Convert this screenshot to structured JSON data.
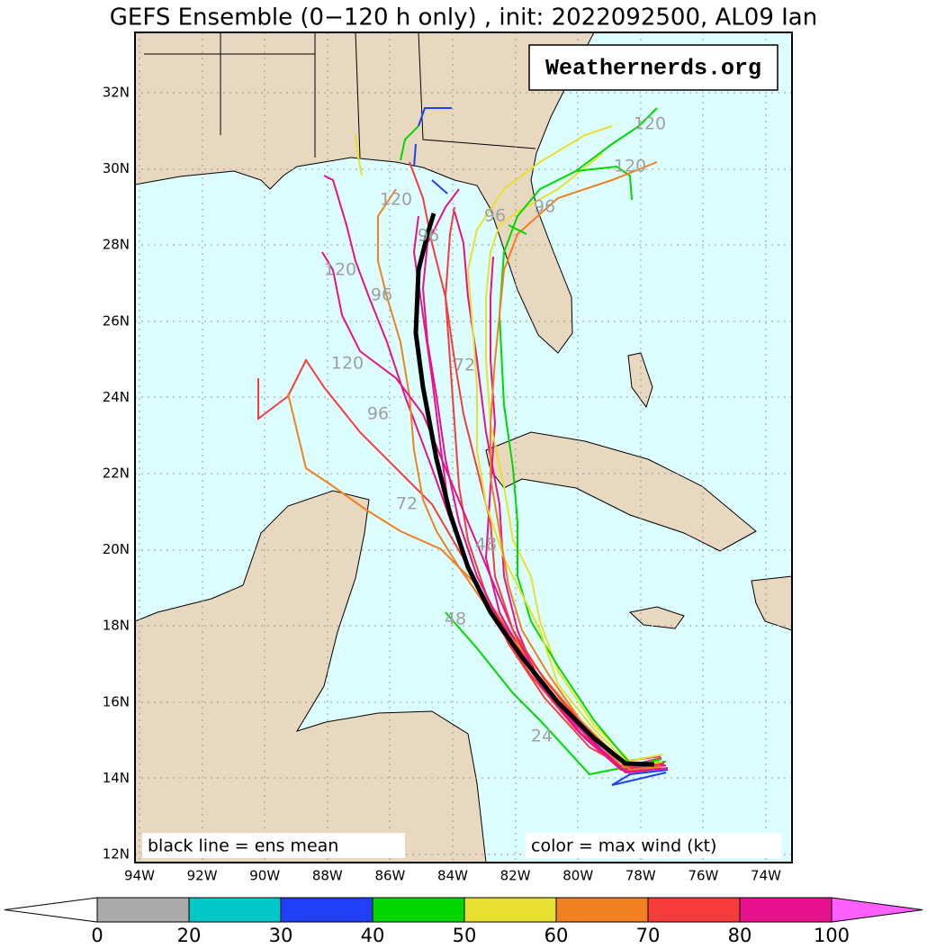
{
  "title": "GEFS Ensemble (0−120 h only) , init: 2022092500, AL09 Ian",
  "watermark": "Weathernerds.org",
  "map": {
    "lat_labels": [
      "32N",
      "30N",
      "28N",
      "26N",
      "24N",
      "22N",
      "20N",
      "18N",
      "16N",
      "14N",
      "12N"
    ],
    "lon_labels": [
      "94W",
      "92W",
      "90W",
      "88W",
      "86W",
      "84W",
      "82W",
      "80W",
      "78W",
      "76W",
      "74W"
    ],
    "hour_labels": [
      "120",
      "120",
      "120",
      "96",
      "96",
      "96",
      "120",
      "96",
      "120",
      "96",
      "72",
      "72",
      "48",
      "48",
      "24"
    ]
  },
  "notes": {
    "left": "black line = ens mean",
    "right": "color = max wind (kt)"
  },
  "colorbar": {
    "labels": [
      "0",
      "20",
      "30",
      "40",
      "50",
      "60",
      "70",
      "80",
      "100"
    ],
    "colors": [
      "#aaaaaa",
      "#00c8c8",
      "#2040f8",
      "#00d800",
      "#e8e030",
      "#f08020",
      "#f83c3c",
      "#e8108c"
    ],
    "overflow_color": "#ff60ff"
  }
}
